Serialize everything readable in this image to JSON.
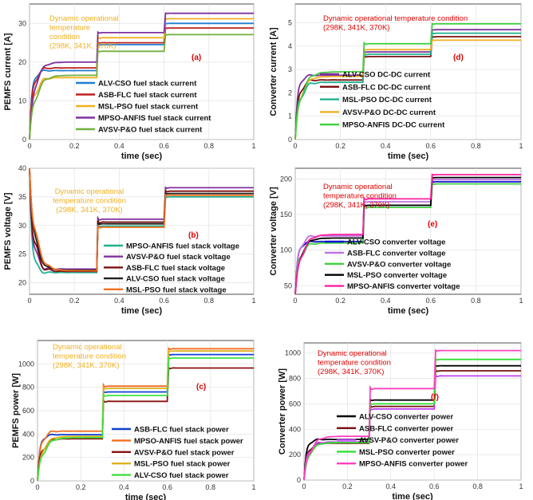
{
  "chart_data": [
    {
      "id": "a",
      "type": "line",
      "panel_label": "(a)",
      "title": "",
      "xlabel": "time (sec)",
      "ylabel": "PEMFS current [A]",
      "xlim": [
        0,
        1
      ],
      "ylim": [
        0,
        35
      ],
      "xticks": [
        0,
        0.2,
        0.4,
        0.6,
        0.8,
        1
      ],
      "yticks": [
        0,
        10,
        20,
        30
      ],
      "xtick_labels": [
        "0",
        "0.2",
        "0.4",
        "0.6",
        "0.8",
        "1"
      ],
      "ytick_labels": [
        "0",
        "10",
        "20",
        "30"
      ],
      "annotation": [
        "Dynamic operational",
        "temperature",
        "condition",
        "(298K, 341K, 370K)"
      ],
      "annotation_color": "#f0b020",
      "legend_location": "lower-right",
      "series": [
        {
          "name": "ALV-CSO fuel stack current",
          "color": "#1f7fd0",
          "levels": [
            17.8,
            24.5,
            30.0
          ]
        },
        {
          "name": "ASB-FLC fuel stack current",
          "color": "#c02020",
          "levels": [
            18.5,
            25.0,
            28.8
          ]
        },
        {
          "name": "MSL-PSO fuel stack current",
          "color": "#f0b020",
          "levels": [
            16.0,
            26.3,
            31.2
          ]
        },
        {
          "name": "MPSO-ANFIS fuel stack current",
          "color": "#8030a0",
          "levels": [
            20.0,
            27.6,
            32.6
          ]
        },
        {
          "name": "AVSV-P&O fuel stack current",
          "color": "#70b040",
          "levels": [
            16.6,
            22.8,
            27.1
          ]
        }
      ]
    },
    {
      "id": "d",
      "type": "line",
      "panel_label": "(d)",
      "title": "",
      "xlabel": "time (sec)",
      "ylabel": "Converter current [A]",
      "xlim": [
        0,
        1
      ],
      "ylim": [
        0,
        5.8
      ],
      "xticks": [
        0,
        0.2,
        0.4,
        0.6,
        0.8,
        1
      ],
      "yticks": [
        0,
        1,
        2,
        3,
        4,
        5
      ],
      "xtick_labels": [
        "0",
        "0.2",
        "0.4",
        "0.6",
        "0.8",
        "1"
      ],
      "ytick_labels": [
        "0",
        "1",
        "2",
        "3",
        "4",
        "5"
      ],
      "annotation": [
        "Dynamic operational temperature condition",
        "(298K, 341K, 370K)"
      ],
      "annotation_color": "#e00000",
      "legend_location": "lower-right",
      "series": [
        {
          "name": "ALV-CSO DC-DC current",
          "color": "#8030a0",
          "levels": [
            2.75,
            3.75,
            4.7
          ]
        },
        {
          "name": "ASB-FLC DC-DC current",
          "color": "#7a1010",
          "levels": [
            2.55,
            3.55,
            4.4
          ]
        },
        {
          "name": "MSL-PSO DC-DC current",
          "color": "#20b090",
          "levels": [
            2.45,
            3.65,
            4.55
          ]
        },
        {
          "name": "AVSV-P&O DC-DC current",
          "color": "#f0b020",
          "levels": [
            2.7,
            3.85,
            4.25
          ]
        },
        {
          "name": "MPSO-ANFIS DC-DC current",
          "color": "#40d040",
          "levels": [
            2.9,
            4.1,
            4.95
          ]
        }
      ]
    },
    {
      "id": "b",
      "type": "line",
      "panel_label": "(b)",
      "title": "",
      "xlabel": "time (sec)",
      "ylabel": "PEMFS voltage [V]",
      "xlim": [
        0,
        1
      ],
      "ylim": [
        18,
        40
      ],
      "xticks": [
        0,
        0.2,
        0.4,
        0.6,
        0.8,
        1
      ],
      "yticks": [
        20,
        25,
        30,
        35,
        40
      ],
      "xtick_labels": [
        "0",
        "0.2",
        "0.4",
        "0.6",
        "0.8",
        "1"
      ],
      "ytick_labels": [
        "20",
        "25",
        "30",
        "35",
        "40"
      ],
      "annotation": [
        "Dynamic operational",
        "temperature condition",
        "(298K, 341K, 370K)"
      ],
      "annotation_color": "#f0b020",
      "legend_location": "lower-right",
      "series": [
        {
          "name": "MPSO-ANFIS fuel stack voltage",
          "color": "#20b090",
          "levels": [
            21.8,
            29.9,
            35.0
          ]
        },
        {
          "name": "AVSV-P&O fuel stack voltage",
          "color": "#8030a0",
          "levels": [
            22.4,
            31.1,
            36.6
          ]
        },
        {
          "name": "ASB-FLC fuel stack voltage",
          "color": "#7a1010",
          "levels": [
            22.0,
            30.6,
            36.0
          ]
        },
        {
          "name": "ALV-CSO fuel stack voltage",
          "color": "#202020",
          "levels": [
            22.2,
            30.3,
            35.6
          ]
        },
        {
          "name": "MSL-PSO fuel stack voltage",
          "color": "#f07020",
          "levels": [
            22.1,
            29.7,
            35.3
          ]
        }
      ]
    },
    {
      "id": "e",
      "type": "line",
      "panel_label": "(e)",
      "title": "",
      "xlabel": "time (sec)",
      "ylabel": "Converter voltage [V]",
      "xlim": [
        0,
        1
      ],
      "ylim": [
        38,
        215
      ],
      "xticks": [
        0,
        0.2,
        0.4,
        0.6,
        0.8,
        1
      ],
      "yticks": [
        50,
        100,
        150,
        200
      ],
      "xtick_labels": [
        "0",
        "0.2",
        "0.4",
        "0.6",
        "0.8",
        "1"
      ],
      "ytick_labels": [
        "50",
        "100",
        "150",
        "200"
      ],
      "annotation": [
        "Dynamic operational",
        "temperature condition",
        "(298K, 341K, 370K)"
      ],
      "annotation_color": "#e00000",
      "legend_location": "lower-right",
      "series": [
        {
          "name": "ALV-CSO converter voltage",
          "color": "#1010d0",
          "levels": [
            112,
            163,
            196
          ]
        },
        {
          "name": "ASB-FLC converter voltage",
          "color": "#c070e0",
          "levels": [
            120,
            168,
            199
          ]
        },
        {
          "name": "AVSV-P&O converter voltage",
          "color": "#40d040",
          "levels": [
            110,
            160,
            193
          ]
        },
        {
          "name": "MSL-PSO converter voltage",
          "color": "#000000",
          "levels": [
            117,
            163,
            202
          ]
        },
        {
          "name": "MPSO-ANFIS converter voltage",
          "color": "#ff20a0",
          "levels": [
            122,
            172,
            206
          ]
        }
      ]
    },
    {
      "id": "c",
      "type": "line",
      "panel_label": "(c)",
      "title": "",
      "xlabel": "time (sec)",
      "ylabel": "PEMFS power [W]",
      "xlim": [
        0,
        1
      ],
      "ylim": [
        0,
        1200
      ],
      "xticks": [
        0,
        0.2,
        0.4,
        0.6,
        0.8,
        1
      ],
      "yticks": [
        0,
        200,
        400,
        600,
        800,
        1000
      ],
      "xtick_labels": [
        "0",
        "0.2",
        "0.4",
        "0.6",
        "0.8",
        "1"
      ],
      "ytick_labels": [
        "0",
        "200",
        "400",
        "600",
        "800",
        "1000"
      ],
      "annotation": [
        "Dynamic operational",
        "temperature condition",
        "(298K, 341K, 370K)"
      ],
      "annotation_color": "#f0b020",
      "legend_location": "lower-right",
      "series": [
        {
          "name": "ASB-FLC fuel stack power",
          "color": "#1040d0",
          "levels": [
            395,
            760,
            1080
          ]
        },
        {
          "name": "MPSO-ANFIS fuel stack power",
          "color": "#f07020",
          "levels": [
            425,
            810,
            1130
          ]
        },
        {
          "name": "AVSV-P&O fuel stack power",
          "color": "#8b1010",
          "levels": [
            360,
            680,
            965
          ]
        },
        {
          "name": "MSL-PSO fuel stack power",
          "color": "#e0b020",
          "levels": [
            380,
            790,
            1110
          ]
        },
        {
          "name": "ALV-CSO fuel stack power",
          "color": "#40e040",
          "levels": [
            370,
            730,
            1050
          ]
        }
      ]
    },
    {
      "id": "f",
      "type": "line",
      "panel_label": "(f)",
      "title": "",
      "xlabel": "time (sec)",
      "ylabel": "Converter power [W]",
      "xlim": [
        0,
        1
      ],
      "ylim": [
        0,
        1080
      ],
      "xticks": [
        0,
        0.2,
        0.4,
        0.6,
        0.8,
        1
      ],
      "yticks": [
        0,
        200,
        400,
        600,
        800,
        1000
      ],
      "xtick_labels": [
        "0",
        "0.2",
        "0.4",
        "0.6",
        "0.8",
        "1"
      ],
      "ytick_labels": [
        "0",
        "200",
        "400",
        "600",
        "800",
        "1000"
      ],
      "annotation": [
        "Dynamic operational",
        "temperature condition",
        "(298K, 341K, 370K)"
      ],
      "annotation_color": "#e00000",
      "legend_location": "lower-right",
      "series": [
        {
          "name": "ALV-CSO converter power",
          "color": "#000000",
          "levels": [
            320,
            630,
            900
          ]
        },
        {
          "name": "ASB-FLC converter power",
          "color": "#7a1010",
          "levels": [
            290,
            580,
            860
          ]
        },
        {
          "name": "AVSV-P&O converter power",
          "color": "#c040f0",
          "levels": [
            300,
            560,
            820
          ]
        },
        {
          "name": "MSL-PSO converter power",
          "color": "#30e030",
          "levels": [
            295,
            600,
            950
          ]
        },
        {
          "name": "MPSO-ANFIS converter power",
          "color": "#ff40c0",
          "levels": [
            345,
            720,
            1020
          ]
        }
      ]
    }
  ]
}
